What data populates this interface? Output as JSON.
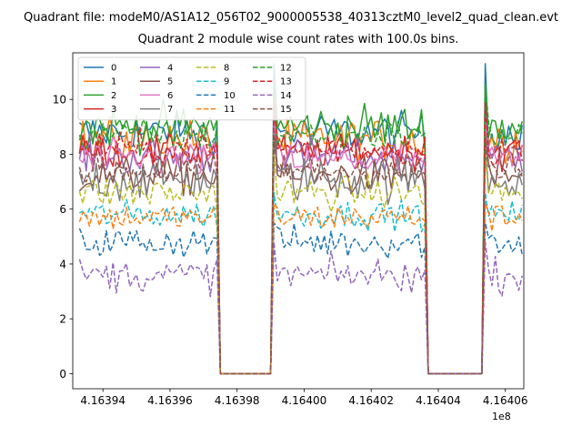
{
  "window": {
    "suptitle": "Quadrant file: modeM0/AS1A12_056T02_9000005538_40313cztM0_level2_quad_clean.evt",
    "title": "Quadrant 2 module wise count rates with 100.0s bins.",
    "x_offset_label": "1e8"
  },
  "colors": {
    "background": "#ffffff",
    "axes": "#000000"
  },
  "chart_data": {
    "type": "line",
    "title": "Quadrant 2 module wise count rates with 100.0s bins.",
    "x_offset": "1e8",
    "xlim": [
      416393100,
      416406550
    ],
    "ylim": [
      -0.55,
      11.7
    ],
    "x_ticks": [
      416394000,
      416396000,
      416398000,
      416400000,
      416402000,
      416404000,
      416406000
    ],
    "x_tick_labels": [
      "4.16394",
      "4.16396",
      "4.16398",
      "4.16400",
      "4.16402",
      "4.16404",
      "4.16406"
    ],
    "y_ticks": [
      0,
      2,
      4,
      6,
      8,
      10
    ],
    "y_tick_labels": [
      "0",
      "2",
      "4",
      "6",
      "8",
      "10"
    ],
    "grid": false,
    "legend": {
      "placement": "top-left",
      "columns": 4
    },
    "bin_seconds": 100,
    "time_start": 416393300,
    "time_end": 416406500,
    "active_intervals": [
      [
        416393300,
        416397400
      ],
      [
        416399100,
        416403600
      ],
      [
        416405400,
        416406500
      ]
    ],
    "gap_intervals": [
      [
        416397600,
        416399000
      ],
      [
        416403700,
        416405300
      ]
    ],
    "series": [
      {
        "name": "0",
        "color": "#1f77b4",
        "dash": "solid",
        "mean": 8.8,
        "noise": 0.35,
        "peak": 11.3
      },
      {
        "name": "1",
        "color": "#ff7f0e",
        "dash": "solid",
        "mean": 8.5,
        "noise": 0.4,
        "peak": 10.4
      },
      {
        "name": "2",
        "color": "#2ca02c",
        "dash": "solid",
        "mean": 9.0,
        "noise": 0.4,
        "peak": 10.5
      },
      {
        "name": "3",
        "color": "#d62728",
        "dash": "solid",
        "mean": 8.1,
        "noise": 0.3,
        "peak": 9.8
      },
      {
        "name": "4",
        "color": "#9467bd",
        "dash": "solid",
        "mean": 7.9,
        "noise": 0.35,
        "peak": 9.6
      },
      {
        "name": "5",
        "color": "#8c564b",
        "dash": "solid",
        "mean": 7.2,
        "noise": 0.35,
        "peak": 8.9
      },
      {
        "name": "6",
        "color": "#e377c2",
        "dash": "solid",
        "mean": 7.8,
        "noise": 0.35,
        "peak": 9.2
      },
      {
        "name": "7",
        "color": "#7f7f7f",
        "dash": "solid",
        "mean": 7.1,
        "noise": 0.4,
        "peak": 8.4
      },
      {
        "name": "8",
        "color": "#bcbd22",
        "dash": "dashed",
        "mean": 6.6,
        "noise": 0.3,
        "peak": 8.0
      },
      {
        "name": "9",
        "color": "#17becf",
        "dash": "dashed",
        "mean": 5.8,
        "noise": 0.25,
        "peak": 6.6
      },
      {
        "name": "10",
        "color": "#1f77b4",
        "dash": "dashed",
        "mean": 4.8,
        "noise": 0.3,
        "peak": 5.5
      },
      {
        "name": "11",
        "color": "#ff7f0e",
        "dash": "dashed",
        "mean": 5.7,
        "noise": 0.25,
        "peak": 6.2
      },
      {
        "name": "12",
        "color": "#2ca02c",
        "dash": "dashed",
        "mean": 8.7,
        "noise": 0.3,
        "peak": 10.6
      },
      {
        "name": "13",
        "color": "#d62728",
        "dash": "dashed",
        "mean": 8.2,
        "noise": 0.3,
        "peak": 9.9
      },
      {
        "name": "14",
        "color": "#9467bd",
        "dash": "dashed",
        "mean": 3.6,
        "noise": 0.3,
        "peak": 4.8
      },
      {
        "name": "15",
        "color": "#8c564b",
        "dash": "dashed",
        "mean": 7.4,
        "noise": 0.3,
        "peak": 8.6
      }
    ]
  }
}
